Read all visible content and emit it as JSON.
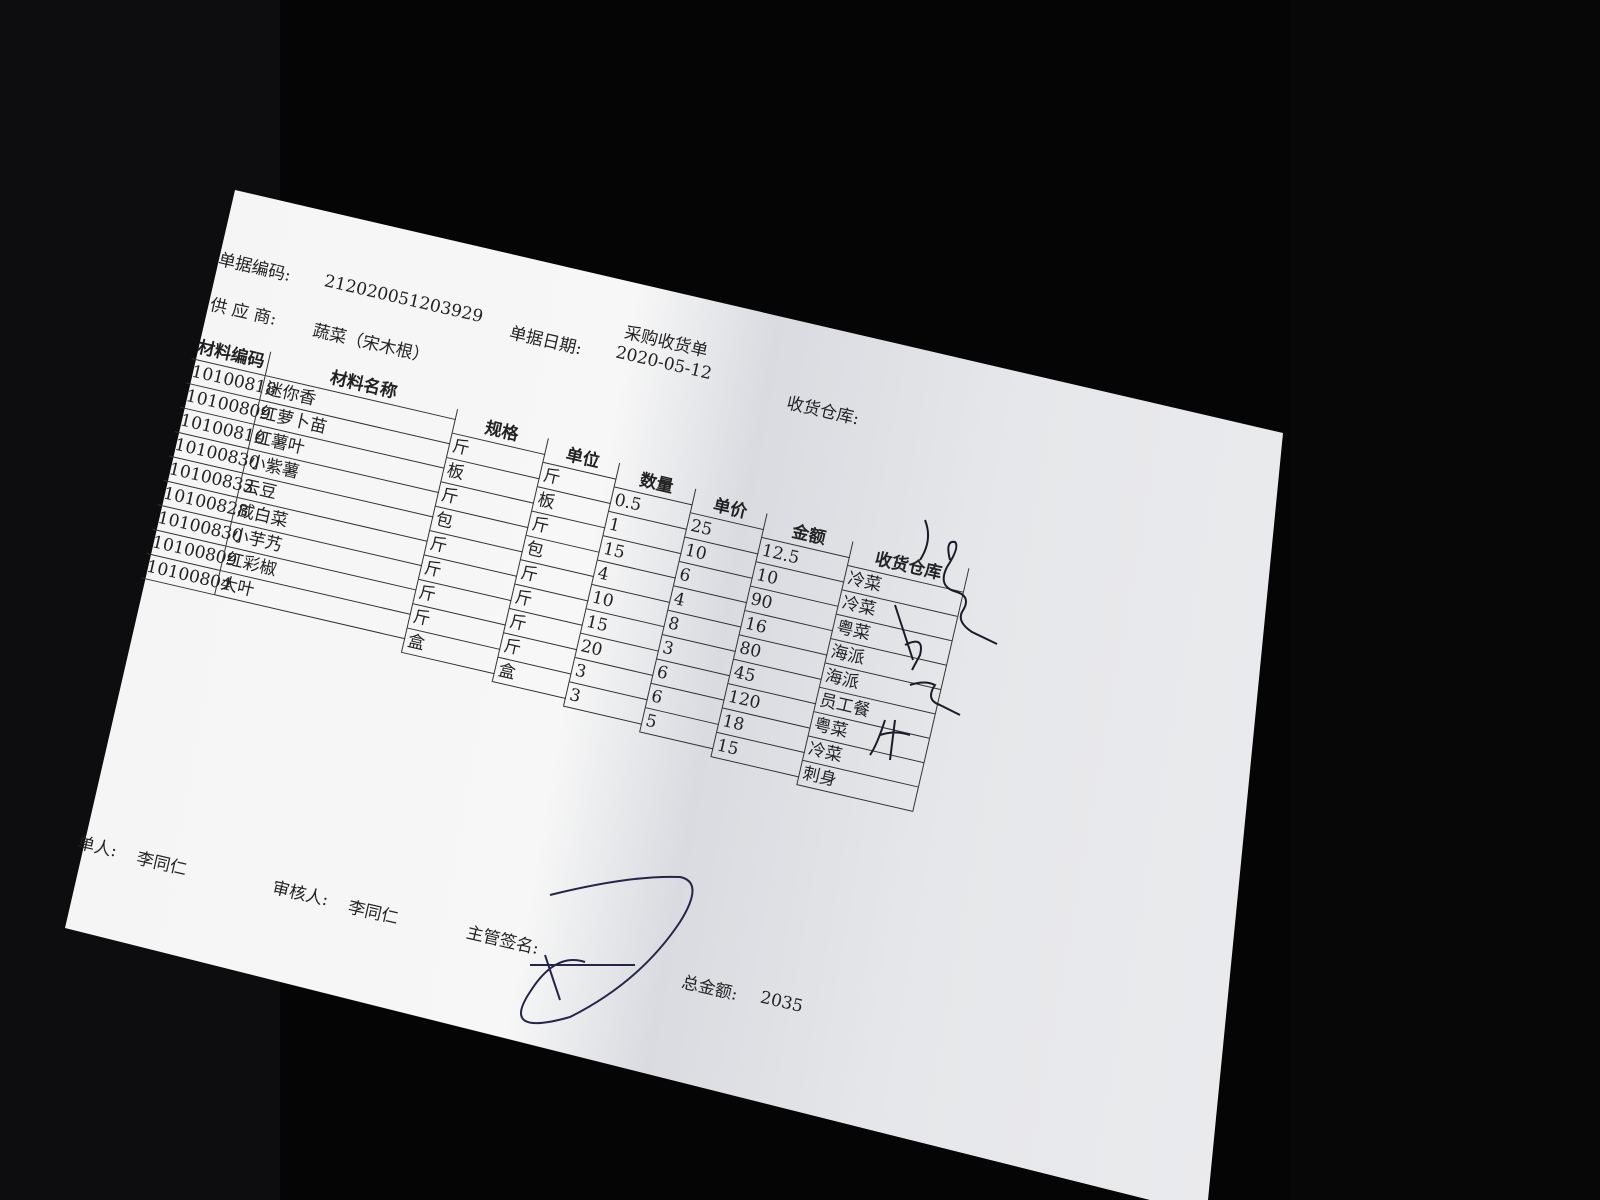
{
  "document": {
    "title": "采购收货单",
    "doc_no_label": "单据编码:",
    "doc_no": "212020051203929",
    "supplier_label": "供 应 商:",
    "supplier": "蔬菜（宋木根）",
    "date_label": "单据日期:",
    "date": "2020-05-12",
    "warehouse_label": "收货仓库:",
    "columns": {
      "code": {
        "header": "材料编码",
        "values": [
          "10100818",
          "10100809",
          "10100810",
          "10100830",
          "10100833",
          "10100828",
          "10100830",
          "10100809",
          "10100804"
        ]
      },
      "name": {
        "header": "材料名称",
        "values": [
          "迷你香",
          "红萝卜苗",
          "红薯叶",
          "小紫薯",
          "云豆",
          "咸白菜",
          "小芋艿",
          "红彩椒",
          "大叶"
        ]
      },
      "spec": {
        "header": "规格",
        "values": [
          "斤",
          "板",
          "斤",
          "包",
          "斤",
          "斤",
          "斤",
          "斤",
          "盒"
        ]
      },
      "unit": {
        "header": "单位",
        "values": [
          "斤",
          "板",
          "斤",
          "包",
          "斤",
          "斤",
          "斤",
          "斤",
          "盒"
        ]
      },
      "qty": {
        "header": "数量",
        "values": [
          "0.5",
          "1",
          "15",
          "4",
          "10",
          "15",
          "20",
          "3",
          "3"
        ]
      },
      "price": {
        "header": "单价",
        "values": [
          "25",
          "10",
          "6",
          "4",
          "8",
          "3",
          "6",
          "6",
          "5"
        ]
      },
      "amount": {
        "header": "金额",
        "values": [
          "12.5",
          "10",
          "90",
          "16",
          "80",
          "45",
          "120",
          "18",
          "15"
        ]
      },
      "warehouse": {
        "header": "收货仓库",
        "values": [
          "冷菜",
          "冷菜",
          "粤菜",
          "海派",
          "海派",
          "员工餐",
          "粤菜",
          "冷菜",
          "刺身"
        ]
      }
    },
    "footer": {
      "maker_label": "单人:",
      "maker": "李同仁",
      "reviewer_label": "审核人:",
      "reviewer": "李同仁",
      "supervisor_label": "主管签名:",
      "total_label": "总金额:",
      "total": "2035"
    }
  }
}
